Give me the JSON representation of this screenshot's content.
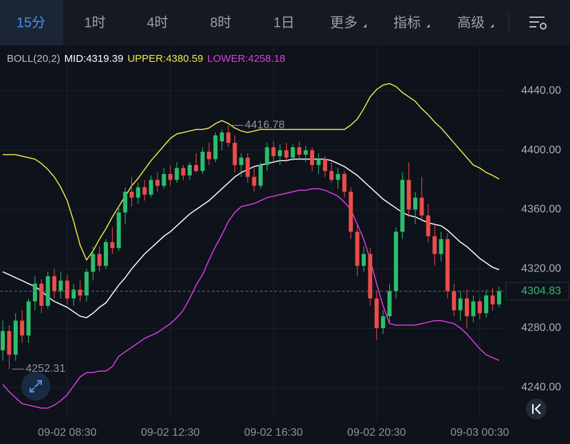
{
  "tabs": [
    "15分",
    "1时",
    "4时",
    "8时",
    "1日",
    "更多",
    "指标",
    "高级"
  ],
  "chart_data": {
    "type": "candlestick",
    "indicator": "BOLL(20,2)",
    "categories": [
      null,
      null,
      null,
      null,
      null,
      null,
      null,
      null,
      null,
      null,
      "09-02 08:30",
      null,
      null,
      null,
      null,
      null,
      null,
      null,
      null,
      null,
      null,
      null,
      null,
      null,
      null,
      null,
      "09-02 12:30",
      null,
      null,
      null,
      null,
      null,
      null,
      null,
      null,
      null,
      null,
      null,
      null,
      null,
      null,
      null,
      "09-02 16:30",
      null,
      null,
      null,
      null,
      null,
      null,
      null,
      null,
      null,
      null,
      null,
      null,
      null,
      null,
      null,
      "09-02 20:30",
      null,
      null,
      null,
      null,
      null,
      null,
      null,
      null,
      null,
      null,
      null,
      null,
      null,
      null,
      null,
      "09-03 00:30",
      null,
      null,
      null
    ],
    "candles": [
      [
        4265,
        4285,
        4258,
        4278
      ],
      [
        4278,
        4282,
        4252.31,
        4262
      ],
      [
        4262,
        4290,
        4258,
        4285
      ],
      [
        4285,
        4292,
        4270,
        4275
      ],
      [
        4275,
        4300,
        4270,
        4298
      ],
      [
        4298,
        4315,
        4292,
        4310
      ],
      [
        4310,
        4313,
        4290,
        4295
      ],
      [
        4295,
        4318,
        4293,
        4315
      ],
      [
        4315,
        4320,
        4300,
        4305
      ],
      [
        4305,
        4318,
        4300,
        4312
      ],
      [
        4312,
        4316,
        4296,
        4300
      ],
      [
        4300,
        4310,
        4295,
        4306
      ],
      [
        4306,
        4312,
        4298,
        4302
      ],
      [
        4302,
        4320,
        4298,
        4318
      ],
      [
        4318,
        4335,
        4312,
        4330
      ],
      [
        4330,
        4335,
        4318,
        4322
      ],
      [
        4322,
        4340,
        4320,
        4338
      ],
      [
        4338,
        4348,
        4330,
        4334
      ],
      [
        4334,
        4362,
        4332,
        4358
      ],
      [
        4358,
        4375,
        4350,
        4372
      ],
      [
        4372,
        4382,
        4362,
        4368
      ],
      [
        4368,
        4378,
        4364,
        4375
      ],
      [
        4375,
        4380,
        4366,
        4370
      ],
      [
        4370,
        4383,
        4368,
        4380
      ],
      [
        4380,
        4385,
        4372,
        4376
      ],
      [
        4376,
        4388,
        4374,
        4384
      ],
      [
        4384,
        4390,
        4376,
        4380
      ],
      [
        4380,
        4392,
        4378,
        4388
      ],
      [
        4388,
        4390,
        4380,
        4383
      ],
      [
        4383,
        4392,
        4380,
        4390
      ],
      [
        4390,
        4398,
        4385,
        4386
      ],
      [
        4386,
        4402,
        4384,
        4399
      ],
      [
        4399,
        4405,
        4390,
        4394
      ],
      [
        4394,
        4412,
        4392,
        4410
      ],
      [
        4406,
        4414,
        4400,
        4412
      ],
      [
        4412,
        4416.78,
        4402,
        4405
      ],
      [
        4405,
        4410,
        4385,
        4390
      ],
      [
        4390,
        4398,
        4382,
        4395
      ],
      [
        4395,
        4398,
        4378,
        4382
      ],
      [
        4382,
        4388,
        4372,
        4376
      ],
      [
        4376,
        4392,
        4374,
        4390
      ],
      [
        4390,
        4405,
        4386,
        4402
      ],
      [
        4402,
        4406,
        4392,
        4396
      ],
      [
        4396,
        4404,
        4390,
        4400
      ],
      [
        4400,
        4405,
        4392,
        4395
      ],
      [
        4395,
        4404,
        4393,
        4402
      ],
      [
        4402,
        4406,
        4394,
        4397
      ],
      [
        4397,
        4403,
        4392,
        4400
      ],
      [
        4400,
        4402,
        4386,
        4390
      ],
      [
        4390,
        4398,
        4384,
        4394
      ],
      [
        4394,
        4396,
        4382,
        4386
      ],
      [
        4386,
        4392,
        4378,
        4380
      ],
      [
        4380,
        4388,
        4374,
        4384
      ],
      [
        4384,
        4386,
        4368,
        4372
      ],
      [
        4372,
        4375,
        4340,
        4345
      ],
      [
        4345,
        4350,
        4315,
        4322
      ],
      [
        4322,
        4335,
        4318,
        4330
      ],
      [
        4330,
        4334,
        4295,
        4300
      ],
      [
        4300,
        4305,
        4272,
        4280
      ],
      [
        4280,
        4292,
        4276,
        4288
      ],
      [
        4288,
        4310,
        4284,
        4305
      ],
      [
        4305,
        4348,
        4300,
        4345
      ],
      [
        4345,
        4385,
        4340,
        4380
      ],
      [
        4380,
        4392,
        4355,
        4360
      ],
      [
        4360,
        4372,
        4350,
        4368
      ],
      [
        4368,
        4382,
        4352,
        4356
      ],
      [
        4356,
        4364,
        4338,
        4342
      ],
      [
        4342,
        4350,
        4322,
        4330
      ],
      [
        4330,
        4345,
        4325,
        4340
      ],
      [
        4340,
        4344,
        4300,
        4305
      ],
      [
        4305,
        4310,
        4288,
        4292
      ],
      [
        4292,
        4305,
        4285,
        4300
      ],
      [
        4300,
        4306,
        4280,
        4288
      ],
      [
        4288,
        4302,
        4284,
        4298
      ],
      [
        4298,
        4300,
        4286,
        4290
      ],
      [
        4290,
        4306,
        4287,
        4302
      ],
      [
        4302,
        4307,
        4292,
        4296
      ],
      [
        4296,
        4308,
        4294,
        4304.83
      ]
    ],
    "up_color": "#2dbd6e",
    "down_color": "#eb4d4b",
    "series": [
      {
        "name": "MID:",
        "color": "#ffffff",
        "values": [
          4318,
          4316,
          4314,
          4312,
          4310,
          4308,
          4305,
          4301,
          4298,
          4296,
          4294,
          4291,
          4288,
          4287,
          4290,
          4294,
          4297,
          4303,
          4309,
          4314,
          4320,
          4325,
          4330,
          4334,
          4338,
          4342,
          4345,
          4349,
          4353,
          4357,
          4360,
          4363,
          4366,
          4370,
          4374,
          4378,
          4382,
          4385,
          4387,
          4389,
          4390,
          4391,
          4392,
          4393,
          4393,
          4394,
          4394,
          4394,
          4394,
          4394,
          4394,
          4393,
          4391,
          4389,
          4386,
          4383,
          4379,
          4375,
          4371,
          4367,
          4364,
          4361,
          4358,
          4356,
          4355,
          4353,
          4351,
          4350,
          4349,
          4346,
          4342,
          4338,
          4335,
          4331,
          4327,
          4324,
          4321,
          4319.39
        ]
      },
      {
        "name": "UPPER:",
        "color": "#f2e64c",
        "values": [
          4397,
          4397,
          4397,
          4396,
          4395,
          4394,
          4391,
          4387,
          4382,
          4375,
          4366,
          4352,
          4336,
          4326,
          4332,
          4340,
          4347,
          4355,
          4362,
          4369,
          4376,
          4381,
          4387,
          4393,
          4398,
          4403,
          4408,
          4411,
          4412,
          4413,
          4414,
          4414,
          4415,
          4418,
          4420,
          4418,
          4415,
          4413,
          4412,
          4413,
          4414,
          4414,
          4414,
          4414,
          4414,
          4414,
          4414,
          4414,
          4414,
          4414,
          4414,
          4414,
          4414,
          4414,
          4417,
          4421,
          4428,
          4436,
          4441,
          4444,
          4445,
          4443,
          4439,
          4436,
          4433,
          4428,
          4424,
          4419,
          4415,
          4410,
          4405,
          4400,
          4395,
          4390,
          4388,
          4385,
          4383,
          4380.59
        ]
      },
      {
        "name": "LOWER:",
        "color": "#e23be2",
        "values": [
          4242,
          4237,
          4233,
          4229,
          4228,
          4227,
          4226,
          4226,
          4228,
          4231,
          4235,
          4241,
          4247,
          4250,
          4250,
          4251,
          4251,
          4254,
          4261,
          4264,
          4267,
          4270,
          4273,
          4275,
          4277,
          4280,
          4283,
          4287,
          4292,
          4300,
          4309,
          4316,
          4326,
          4335,
          4343,
          4352,
          4358,
          4362,
          4363,
          4364,
          4366,
          4368,
          4369,
          4370,
          4371,
          4372,
          4373,
          4373,
          4374,
          4374,
          4373,
          4371,
          4369,
          4365,
          4360,
          4350,
          4340,
          4326,
          4310,
          4295,
          4283,
          4282,
          4282,
          4282,
          4282,
          4283,
          4284,
          4285,
          4285,
          4284,
          4283,
          4280,
          4276,
          4271,
          4266,
          4262,
          4260,
          4258.18
        ]
      }
    ],
    "last_price": 4304.83,
    "ylim": [
      4218,
      4455
    ],
    "yticks": [
      {
        "value": 4240,
        "label": "4240.00"
      },
      {
        "value": 4280,
        "label": "4280.00"
      },
      {
        "value": 4320,
        "label": "4320.00"
      },
      {
        "value": 4360,
        "label": "4360.00"
      },
      {
        "value": 4400,
        "label": "4400.00"
      },
      {
        "value": 4440,
        "label": "4440.00"
      }
    ],
    "grid": true
  }
}
